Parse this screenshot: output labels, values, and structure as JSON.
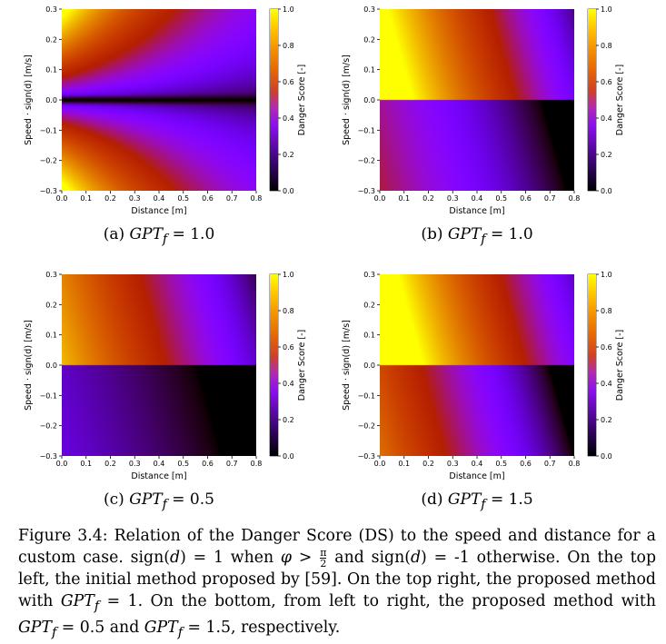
{
  "panels": [
    {
      "id": "a",
      "caption": "(a) GPTf = 1.0",
      "caption_parts": {
        "label": "(a)",
        "var": "GPT",
        "sub": "f",
        "rel": "=",
        "val": "1.0"
      },
      "xlabel": "Distance [m]",
      "ylabel": "Speed · sign(d) [m/s]",
      "colorbar_label": "Danger Score [-]",
      "x_ticks": [
        "0.0",
        "0.1",
        "0.2",
        "0.3",
        "0.4",
        "0.5",
        "0.6",
        "0.7",
        "0.8"
      ],
      "y_ticks": [
        "0.3",
        "0.2",
        "0.1",
        "0.0",
        "−0.1",
        "−0.2",
        "−0.3"
      ],
      "cbar_ticks": [
        "1.0",
        "0.8",
        "0.6",
        "0.4",
        "0.2",
        "0.0"
      ],
      "model": "initial"
    },
    {
      "id": "b",
      "caption": "(b) GPTf = 1.0",
      "caption_parts": {
        "label": "(b)",
        "var": "GPT",
        "sub": "f",
        "rel": "=",
        "val": "1.0"
      },
      "xlabel": "Distance [m]",
      "ylabel": "Speed · sign(d) [m/s]",
      "colorbar_label": "Danger Score [-]",
      "x_ticks": [
        "0.0",
        "0.1",
        "0.2",
        "0.3",
        "0.4",
        "0.5",
        "0.6",
        "0.7",
        "0.8"
      ],
      "y_ticks": [
        "0.3",
        "0.2",
        "0.1",
        "0.0",
        "−0.1",
        "−0.2",
        "−0.3"
      ],
      "cbar_ticks": [
        "1.0",
        "0.8",
        "0.6",
        "0.4",
        "0.2",
        "0.0"
      ],
      "model": "proposed",
      "gpt_f": 1.0
    },
    {
      "id": "c",
      "caption": "(c) GPTf = 0.5",
      "caption_parts": {
        "label": "(c)",
        "var": "GPT",
        "sub": "f",
        "rel": "=",
        "val": "0.5"
      },
      "xlabel": "Distance [m]",
      "ylabel": "Speed · sign(d) [m/s]",
      "colorbar_label": "Danger Score [-]",
      "x_ticks": [
        "0.0",
        "0.1",
        "0.2",
        "0.3",
        "0.4",
        "0.5",
        "0.6",
        "0.7",
        "0.8"
      ],
      "y_ticks": [
        "0.3",
        "0.2",
        "0.1",
        "0.0",
        "−0.1",
        "−0.2",
        "−0.3"
      ],
      "cbar_ticks": [
        "1.0",
        "0.8",
        "0.6",
        "0.4",
        "0.2",
        "0.0"
      ],
      "model": "proposed",
      "gpt_f": 0.5
    },
    {
      "id": "d",
      "caption": "(d) GPTf = 1.5",
      "caption_parts": {
        "label": "(d)",
        "var": "GPT",
        "sub": "f",
        "rel": "=",
        "val": "1.5"
      },
      "xlabel": "Distance [m]",
      "ylabel": "Speed · sign(d) [m/s]",
      "colorbar_label": "Danger Score [-]",
      "x_ticks": [
        "0.0",
        "0.1",
        "0.2",
        "0.3",
        "0.4",
        "0.5",
        "0.6",
        "0.7",
        "0.8"
      ],
      "y_ticks": [
        "0.3",
        "0.2",
        "0.1",
        "0.0",
        "−0.1",
        "−0.2",
        "−0.3"
      ],
      "cbar_ticks": [
        "1.0",
        "0.8",
        "0.6",
        "0.4",
        "0.2",
        "0.0"
      ],
      "model": "proposed",
      "gpt_f": 1.5
    }
  ],
  "figure_caption": {
    "full_text": "Figure 3.4: Relation of the Danger Score (DS) to the speed and distance for a custom case. sign(d) = 1 when φ > π/2 and sign(d) = -1 otherwise. On the top left, the initial method proposed by [59]. On the top right, the proposed method with GPTf = 1. On the bottom, from left to right, the proposed method with GPTf = 0.5 and GPTf = 1.5, respectively.",
    "part1": "Figure 3.4: Relation of the Danger Score (DS) to the speed and distance for a custom case. sign(",
    "d": "d",
    "part2": ") = 1 when ",
    "phi": "φ",
    "gt": " > ",
    "frac_num": "π",
    "frac_den": "2",
    "part3": " and sign(",
    "part4": ") = -1 otherwise. On the top left, the initial method proposed by [59]. On the top right, the proposed method with ",
    "gpt": "GPT",
    "sub_f": "f",
    "part5": " = 1. On the bottom, from left to right, the proposed method with ",
    "part6": " = 0.5 and ",
    "part7": " = 1.5, respectively."
  },
  "chart_data": [
    {
      "type": "heatmap",
      "title": "(a) GPTf = 1.0",
      "xlabel": "Distance [m]",
      "ylabel": "Speed · sign(d) [m/s]",
      "xlim": [
        0.0,
        0.8
      ],
      "ylim": [
        -0.3,
        0.3
      ],
      "colorbar": {
        "label": "Danger Score [-]",
        "range": [
          0.0,
          1.0
        ],
        "colormap": "gnuplot"
      },
      "description_of_values": "DS approx 1.0 at (0.0, 0.3); near 0.0 along speed = 0 and at large distance; DS increases with |speed| and decreases with distance"
    },
    {
      "type": "heatmap",
      "title": "(b) GPTf = 1.0",
      "xlabel": "Distance [m]",
      "ylabel": "Speed · sign(d) [m/s]",
      "xlim": [
        0.0,
        0.8
      ],
      "ylim": [
        -0.3,
        0.3
      ],
      "colorbar": {
        "label": "Danger Score [-]",
        "range": [
          0.0,
          1.0
        ],
        "colormap": "gnuplot"
      },
      "description_of_values": "positive speed: DS approx 0.95 at distance 0.0 to approx 0.15 at 0.8; negative speed: DS approx 0.6 at 0.0 to 0.0 at 0.8"
    },
    {
      "type": "heatmap",
      "title": "(c) GPTf = 0.5",
      "xlabel": "Distance [m]",
      "ylabel": "Speed · sign(d) [m/s]",
      "xlim": [
        0.0,
        0.8
      ],
      "ylim": [
        -0.3,
        0.3
      ],
      "colorbar": {
        "label": "Danger Score [-]",
        "range": [
          0.0,
          1.0
        ],
        "colormap": "gnuplot"
      },
      "description_of_values": "positive speed: DS approx 0.7 at distance 0.0 to approx 0.1 at 0.8; negative speed: DS approx 0.3 at 0.0 to 0.0 at 0.8"
    },
    {
      "type": "heatmap",
      "title": "(d) GPTf = 1.5",
      "xlabel": "Distance [m]",
      "ylabel": "Speed · sign(d) [m/s]",
      "xlim": [
        0.0,
        0.8
      ],
      "ylim": [
        -0.3,
        0.3
      ],
      "colorbar": {
        "label": "Danger Score [-]",
        "range": [
          0.0,
          1.0
        ],
        "colormap": "gnuplot"
      },
      "description_of_values": "positive speed: DS approx 1.0 at distance 0.0 to approx 0.2 at 0.8; negative speed: DS approx 0.85 at 0.0 to 0.05 at 0.8"
    }
  ]
}
